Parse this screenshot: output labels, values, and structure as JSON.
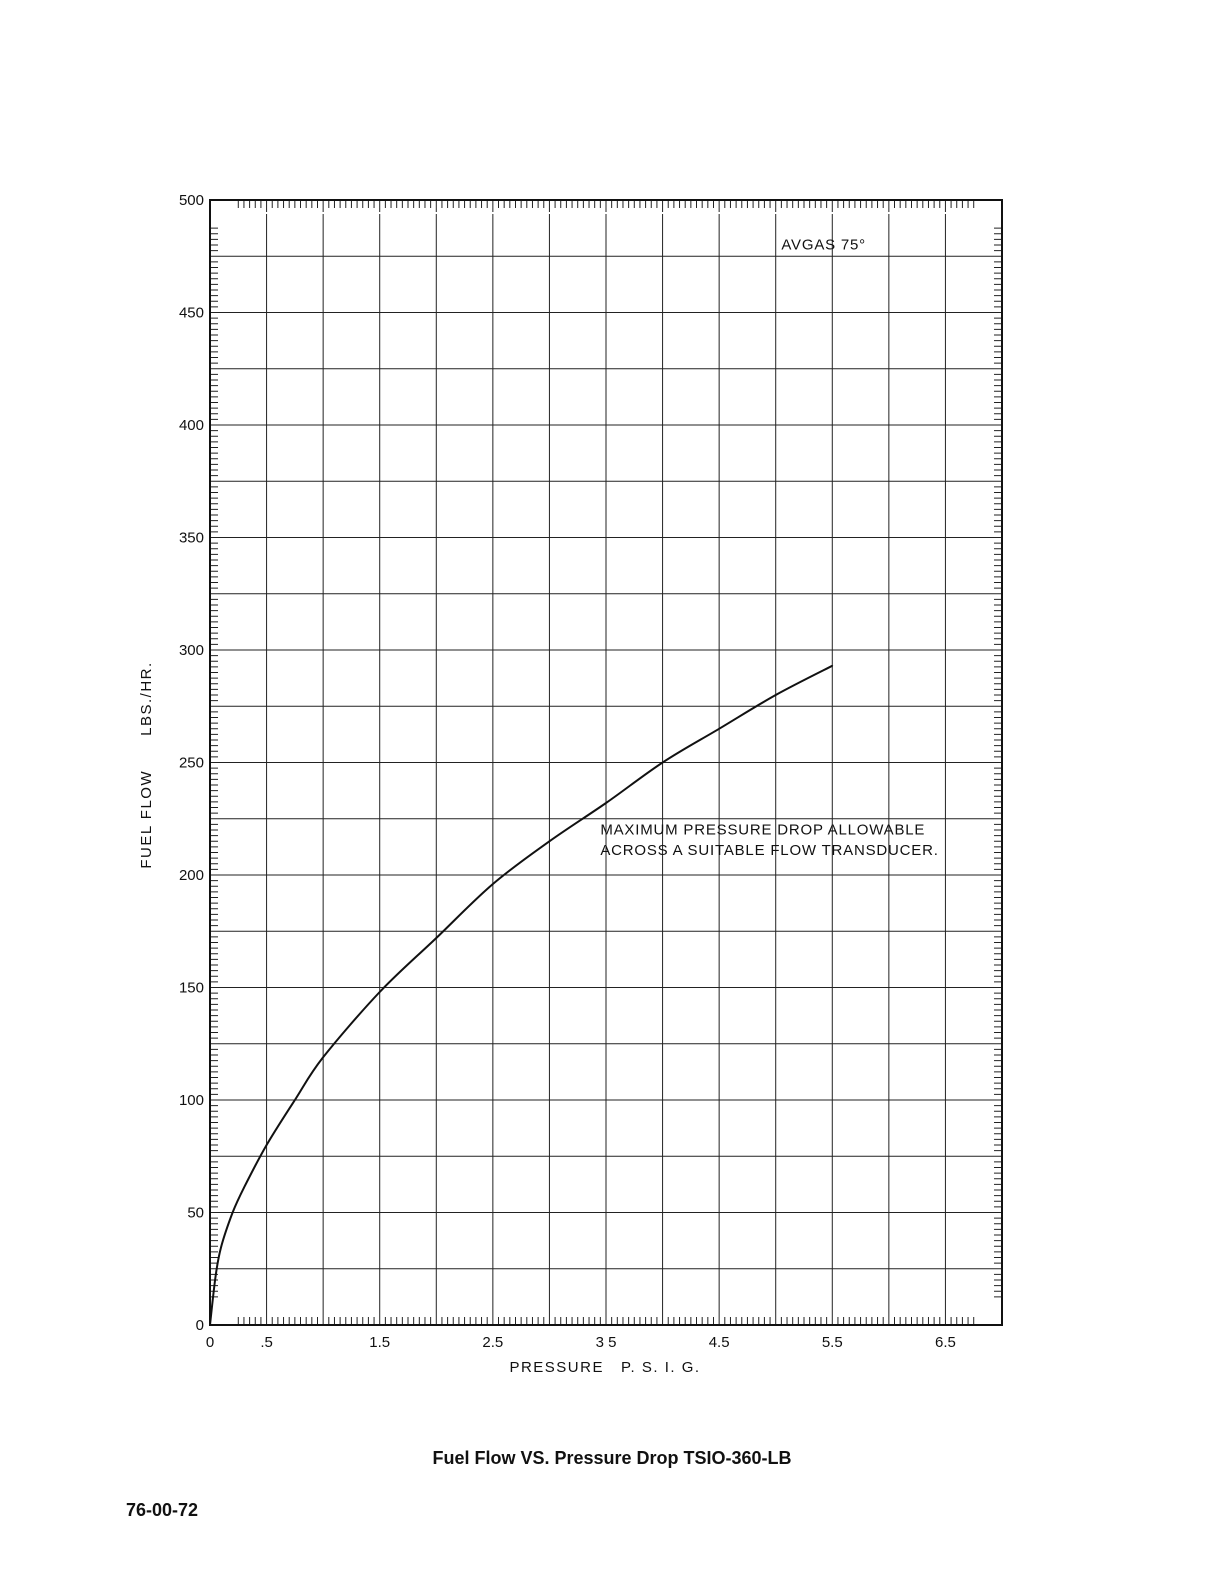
{
  "chart_data": {
    "type": "line",
    "title": "Fuel Flow VS. Pressure Drop TSIO-360-LB",
    "xlabel": "PRESSURE   P. S. I. G.",
    "ylabel": "FUEL FLOW      LBS./HR.",
    "xlim": [
      0,
      7
    ],
    "ylim": [
      0,
      500
    ],
    "x_tick_labels": [
      {
        "value": 0,
        "label": "0"
      },
      {
        "value": 0.5,
        "label": ".5"
      },
      {
        "value": 1.5,
        "label": "1.5"
      },
      {
        "value": 2.5,
        "label": "2.5"
      },
      {
        "value": 3.5,
        "label": "3 5"
      },
      {
        "value": 4.5,
        "label": "4.5"
      },
      {
        "value": 5.5,
        "label": "5.5"
      },
      {
        "value": 6.5,
        "label": "6.5"
      }
    ],
    "y_tick_labels": [
      {
        "value": 0,
        "label": "0"
      },
      {
        "value": 50,
        "label": "50"
      },
      {
        "value": 100,
        "label": "100"
      },
      {
        "value": 150,
        "label": "150"
      },
      {
        "value": 200,
        "label": "200"
      },
      {
        "value": 250,
        "label": "250"
      },
      {
        "value": 300,
        "label": "300"
      },
      {
        "value": 350,
        "label": "350"
      },
      {
        "value": 400,
        "label": "400"
      },
      {
        "value": 450,
        "label": "450"
      },
      {
        "value": 500,
        "label": "500"
      }
    ],
    "grid": true,
    "series": [
      {
        "x": [
          0,
          0.05,
          0.1,
          0.2,
          0.3,
          0.5,
          0.75,
          1.0,
          1.5,
          2.0,
          2.5,
          3.0,
          3.5,
          4.0,
          4.5,
          5.0,
          5.5
        ],
        "y": [
          0,
          22,
          35,
          50,
          61,
          80,
          100,
          119,
          148,
          172,
          196,
          215,
          232,
          250,
          265,
          280,
          293
        ]
      }
    ],
    "annotations": [
      {
        "text": "AVGAS 75°",
        "x": 5.05,
        "y": 478
      },
      {
        "text": "MAXIMUM PRESSURE DROP ALLOWABLE",
        "x": 3.45,
        "y": 218
      },
      {
        "text": "ACROSS A SUITABLE FLOW TRANSDUCER.",
        "x": 3.45,
        "y": 209
      }
    ]
  },
  "page": {
    "caption": "Fuel Flow VS. Pressure Drop TSIO-360-LB",
    "code": "76-00-72"
  }
}
